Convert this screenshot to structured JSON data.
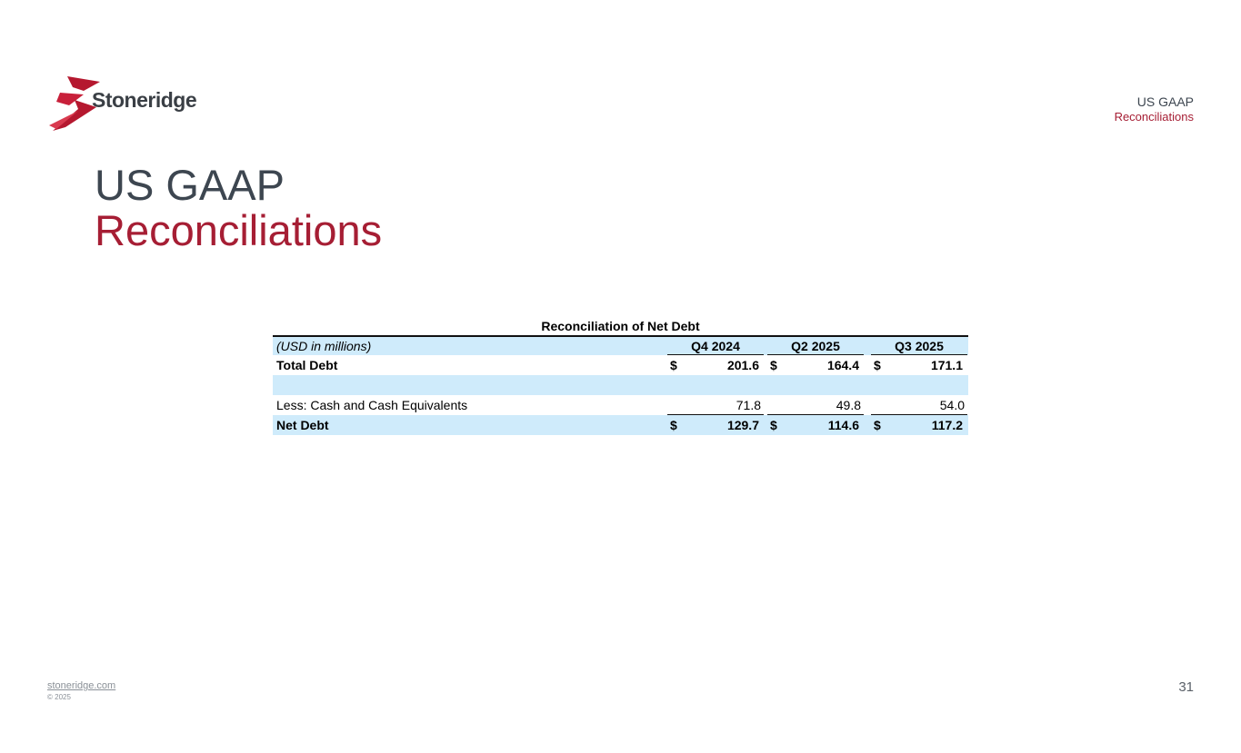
{
  "brand": {
    "logo_text": "Stoneridge",
    "accent": "#a61e34",
    "dark": "#3d4650",
    "table_shade": "#cfebfb"
  },
  "corner": {
    "line1": "US GAAP",
    "line2": "Reconciliations"
  },
  "title": {
    "line1": "US GAAP",
    "line2": "Reconciliations"
  },
  "table": {
    "title": "Reconciliation of Net Debt",
    "units_label": "(USD in millions)",
    "columns": [
      "Q4 2024",
      "Q2 2025",
      "Q3 2025"
    ],
    "rows": [
      {
        "label": "Total Debt",
        "currency": [
          "$",
          "$",
          "$"
        ],
        "values": [
          "201.6",
          "164.4",
          "171.1"
        ]
      },
      {
        "label": "",
        "currency": [
          "",
          "",
          ""
        ],
        "values": [
          "",
          "",
          ""
        ]
      },
      {
        "label": "Less: Cash and Cash Equivalents",
        "currency": [
          "",
          "",
          ""
        ],
        "values": [
          "71.8",
          "49.8",
          "54.0"
        ]
      },
      {
        "label": "Net Debt",
        "currency": [
          "$",
          "$",
          "$"
        ],
        "values": [
          "129.7",
          "114.6",
          "117.2"
        ]
      }
    ]
  },
  "footer": {
    "link": "stoneridge.com",
    "copyright": "© 2025",
    "page_number": "31"
  }
}
